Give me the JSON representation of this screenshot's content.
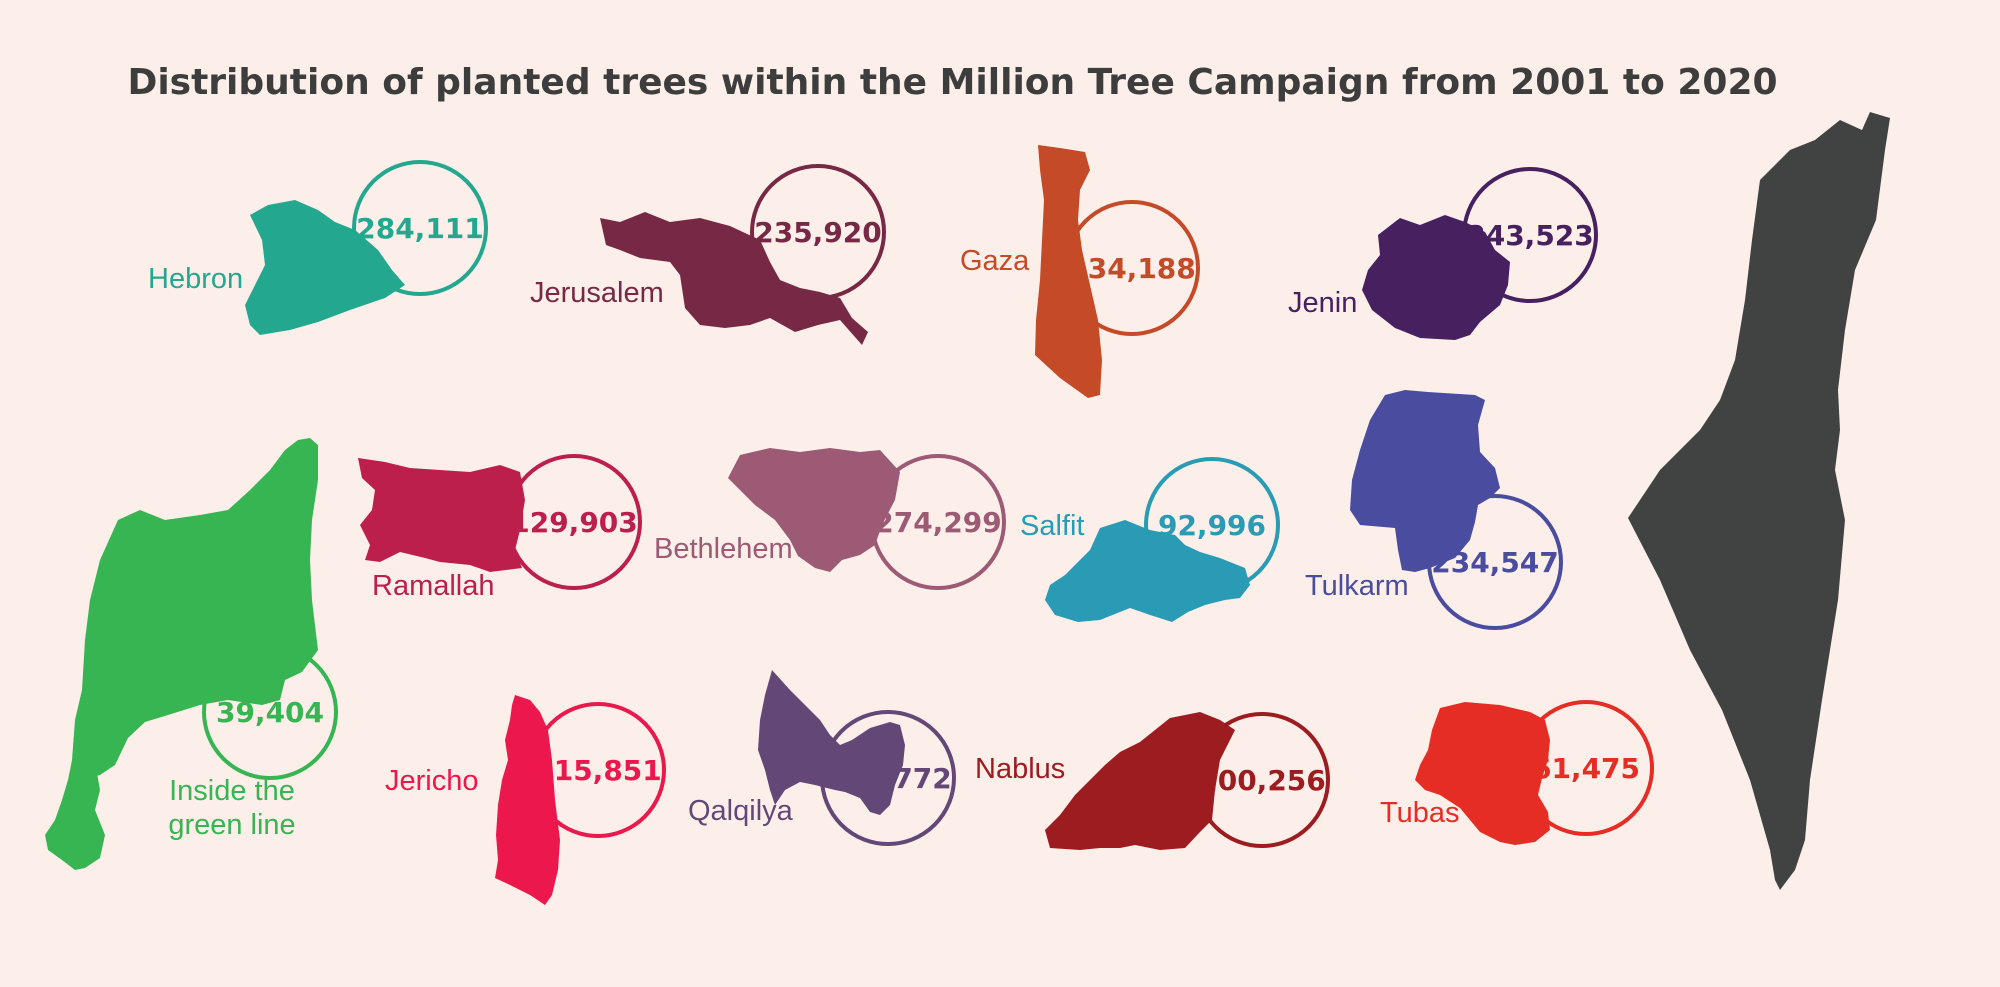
{
  "chart_data": {
    "type": "table",
    "title": "Distribution of planted trees within the Million Tree Campaign from 2001 to 2020",
    "categories": [
      "Hebron",
      "Jerusalem",
      "Gaza",
      "Jenin",
      "Inside the green line",
      "Ramallah",
      "Bethlehem",
      "Salfit",
      "Tulkarm",
      "Jericho",
      "Qalqilya",
      "Nablus",
      "Tubas"
    ],
    "values": [
      284111,
      235920,
      434188,
      243523,
      39404,
      129903,
      274299,
      92996,
      234547,
      115851,
      168772,
      200256,
      61475
    ],
    "regions": [
      {
        "name": "Hebron",
        "value": 284111,
        "value_label": "284,111",
        "color": "#24a78f"
      },
      {
        "name": "Jerusalem",
        "value": 235920,
        "value_label": "235,920",
        "color": "#762845"
      },
      {
        "name": "Gaza",
        "value": 434188,
        "value_label": "434,188",
        "color": "#c44a28"
      },
      {
        "name": "Jenin",
        "value": 243523,
        "value_label": "243,523",
        "color": "#47205f"
      },
      {
        "name": "Inside the green line",
        "value": 39404,
        "value_label": "39,404",
        "color": "#37b552"
      },
      {
        "name": "Ramallah",
        "value": 129903,
        "value_label": "129,903",
        "color": "#bd1f4c"
      },
      {
        "name": "Bethlehem",
        "value": 274299,
        "value_label": "274,299",
        "color": "#9c5a75"
      },
      {
        "name": "Salfit",
        "value": 92996,
        "value_label": "92,996",
        "color": "#2a9bb5"
      },
      {
        "name": "Tulkarm",
        "value": 234547,
        "value_label": "234,547",
        "color": "#4a4c9f"
      },
      {
        "name": "Jericho",
        "value": 115851,
        "value_label": "115,851",
        "color": "#ec174c"
      },
      {
        "name": "Qalqilya",
        "value": 168772,
        "value_label": "168,772",
        "color": "#634877"
      },
      {
        "name": "Nablus",
        "value": 200256,
        "value_label": "200,256",
        "color": "#9c1c20"
      },
      {
        "name": "Tubas",
        "value": 61475,
        "value_label": "61,475",
        "color": "#e52d25"
      }
    ],
    "map_color": "#414342"
  }
}
